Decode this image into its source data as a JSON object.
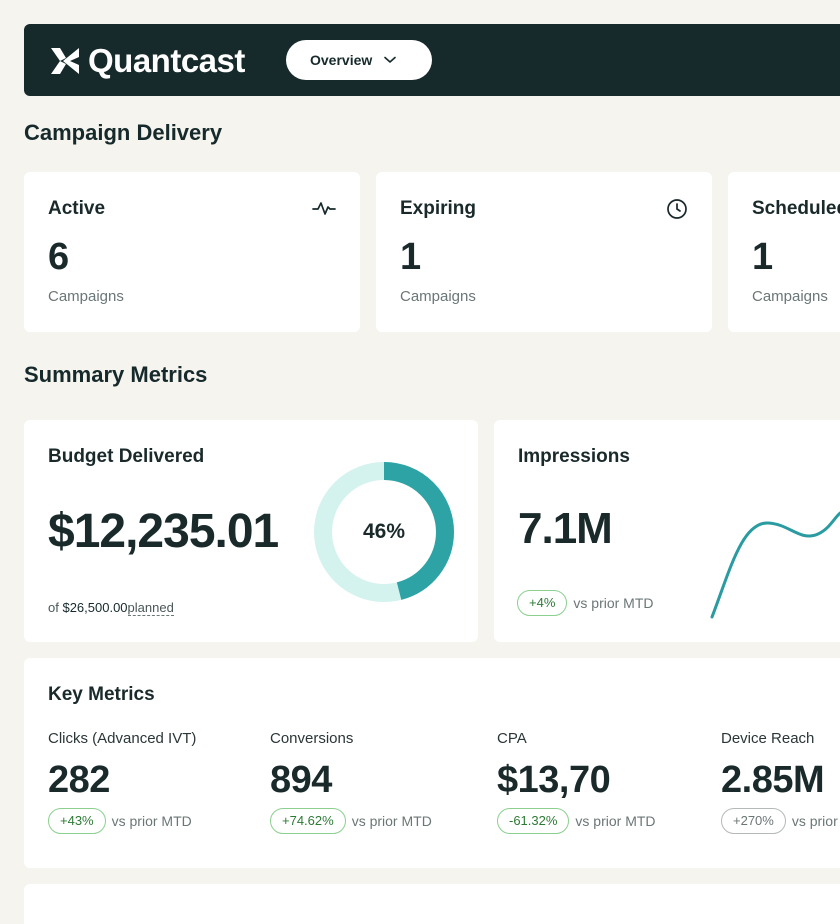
{
  "header": {
    "brand": "Quantcast",
    "view_select": "Overview",
    "icons": {
      "logo": "quantcast-logo-icon",
      "dropdown": "chevron-down-icon"
    }
  },
  "campaign_delivery": {
    "title": "Campaign Delivery",
    "cards": [
      {
        "title": "Active",
        "value": "6",
        "unit": "Campaigns",
        "icon": "activity-pulse-icon"
      },
      {
        "title": "Expiring",
        "value": "1",
        "unit": "Campaigns",
        "icon": "clock-icon"
      },
      {
        "title": "Scheduled",
        "value": "1",
        "unit": "Campaigns"
      }
    ]
  },
  "summary_metrics": {
    "title": "Summary Metrics",
    "budget": {
      "title": "Budget Delivered",
      "value": "$12,235.01",
      "of_label": "of",
      "planned_amount": "$26,500.00",
      "planned_label": "planned",
      "percent_label": "46%",
      "percent_value": 0.46,
      "colors": {
        "fill": "#2ea3a6",
        "track": "#d4f3ef"
      }
    },
    "impressions": {
      "title": "Impressions",
      "value": "7.1M",
      "change": "+4%",
      "vs_label": "vs prior MTD",
      "sparkline_color": "#2a9ba1"
    }
  },
  "key_metrics": {
    "title": "Key Metrics",
    "items": [
      {
        "label": "Clicks (Advanced IVT)",
        "value": "282",
        "change": "+43%",
        "vs_label": "vs prior MTD",
        "trend": "positive"
      },
      {
        "label": "Conversions",
        "value": "894",
        "change": "+74.62%",
        "vs_label": "vs prior MTD",
        "trend": "positive"
      },
      {
        "label": "CPA",
        "value": "$13,70",
        "change": "-61.32%",
        "vs_label": "vs prior MTD",
        "trend": "positive"
      },
      {
        "label": "Device Reach",
        "value": "2.85M",
        "change": "+270%",
        "vs_label": "vs prior MTD",
        "trend": "neutral"
      }
    ]
  },
  "colors": {
    "background": "#f5f4ee",
    "header": "#16292b",
    "positive_border": "#8bd08f",
    "positive_text": "#2d7a35"
  }
}
